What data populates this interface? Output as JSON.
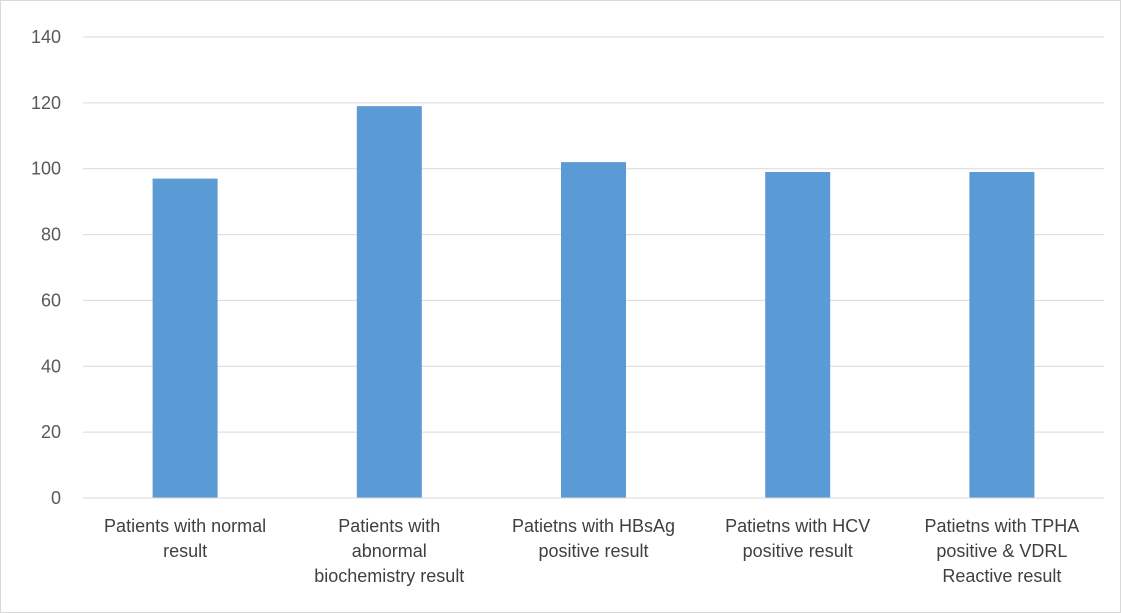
{
  "chart_data": {
    "type": "bar",
    "title": "",
    "xlabel": "",
    "ylabel": "",
    "categories": [
      [
        "Patients with normal",
        "result"
      ],
      [
        "Patients with",
        "abnormal",
        "biochemistry result"
      ],
      [
        "Patietns with HBsAg",
        "positive result"
      ],
      [
        "Patietns with HCV",
        "positive result"
      ],
      [
        "Patietns with TPHA",
        "positive & VDRL",
        "Reactive result"
      ]
    ],
    "values": [
      97,
      119,
      102,
      99,
      99
    ],
    "ylim": [
      0,
      140
    ],
    "yticks": [
      0,
      20,
      40,
      60,
      80,
      100,
      120,
      140
    ],
    "grid": true,
    "legend": "none",
    "bar_color": "#5b9bd5",
    "grid_color": "#d9d9d9",
    "axis_color": "#d9d9d9"
  }
}
